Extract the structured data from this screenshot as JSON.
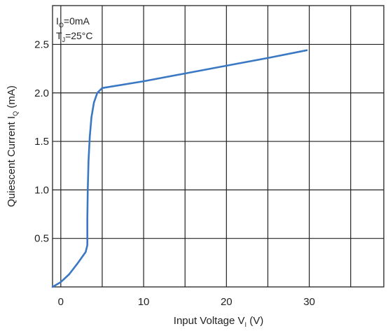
{
  "chart_data": {
    "type": "line",
    "xlabel": {
      "main": "Input Voltage   V",
      "sub": "I",
      "unit": " (V)"
    },
    "ylabel": {
      "main": "Quiescent Current   I",
      "sub": "Q",
      "unit": " (mA)"
    },
    "annotations": [
      {
        "main": "I",
        "sub": "O",
        "rest": "=0mA"
      },
      {
        "main": "T",
        "sub": "J",
        "rest": "=25°C"
      }
    ],
    "xlim": [
      -1,
      39
    ],
    "ylim": [
      0,
      2.9
    ],
    "x_ticks": [
      0,
      10,
      20,
      30
    ],
    "x_tick_labels": [
      "0",
      "10",
      "20",
      "30"
    ],
    "x_gridlines": [
      0,
      5,
      10,
      15,
      20,
      25,
      30,
      35
    ],
    "y_ticks": [
      0.5,
      1.0,
      1.5,
      2.0,
      2.5
    ],
    "y_tick_labels": [
      "0.5",
      "1.0",
      "1.5",
      "2.0",
      "2.5"
    ],
    "y_gridlines": [
      0.5,
      1.0,
      1.5,
      2.0,
      2.5
    ],
    "grid": true,
    "line_color": "#3b78c4",
    "series": [
      {
        "points": [
          [
            -1,
            0
          ],
          [
            0,
            0.05
          ],
          [
            1,
            0.13
          ],
          [
            2,
            0.24
          ],
          [
            3,
            0.36
          ],
          [
            3.2,
            0.43
          ],
          [
            3.2,
            0.7
          ],
          [
            3.25,
            1.0
          ],
          [
            3.35,
            1.3
          ],
          [
            3.5,
            1.55
          ],
          [
            3.7,
            1.75
          ],
          [
            4.0,
            1.9
          ],
          [
            4.4,
            2.0
          ],
          [
            5,
            2.05
          ],
          [
            10,
            2.12
          ],
          [
            15,
            2.2
          ],
          [
            20,
            2.28
          ],
          [
            25,
            2.36
          ],
          [
            29.7,
            2.44
          ]
        ]
      }
    ]
  }
}
